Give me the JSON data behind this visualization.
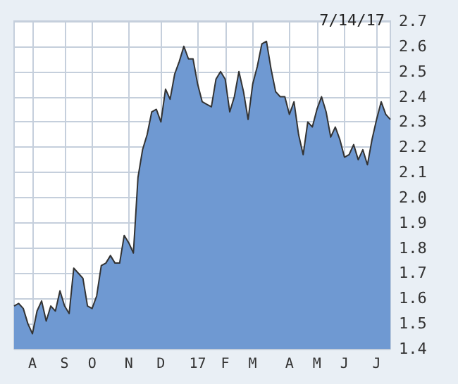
{
  "chart_data": {
    "type": "area",
    "color": "#6f99d2",
    "annotations": [
      "7/14/17"
    ],
    "categories": [
      null,
      null,
      null,
      null,
      "A",
      null,
      null,
      null,
      null,
      null,
      null,
      "S",
      null,
      null,
      null,
      null,
      null,
      "O",
      null,
      null,
      null,
      null,
      null,
      null,
      null,
      "N",
      null,
      null,
      null,
      null,
      null,
      null,
      "D",
      null,
      null,
      null,
      null,
      null,
      null,
      null,
      "17",
      null,
      null,
      null,
      null,
      null,
      "F",
      null,
      null,
      null,
      null,
      null,
      "M",
      null,
      null,
      null,
      null,
      null,
      null,
      null,
      "A",
      null,
      null,
      null,
      null,
      null,
      "M",
      null,
      null,
      null,
      null,
      null,
      "J",
      null,
      null,
      null,
      null,
      null,
      null,
      "J",
      null,
      null,
      null
    ],
    "values": [
      1.57,
      1.58,
      1.56,
      1.5,
      1.46,
      1.55,
      1.59,
      1.51,
      1.57,
      1.55,
      1.63,
      1.57,
      1.54,
      1.72,
      1.7,
      1.68,
      1.57,
      1.56,
      1.61,
      1.73,
      1.74,
      1.77,
      1.74,
      1.74,
      1.85,
      1.82,
      1.78,
      2.08,
      2.19,
      2.25,
      2.34,
      2.35,
      2.3,
      2.43,
      2.39,
      2.49,
      2.54,
      2.6,
      2.55,
      2.55,
      2.45,
      2.38,
      2.37,
      2.36,
      2.47,
      2.5,
      2.47,
      2.34,
      2.4,
      2.5,
      2.42,
      2.31,
      2.45,
      2.52,
      2.61,
      2.62,
      2.51,
      2.42,
      2.4,
      2.4,
      2.33,
      2.38,
      2.25,
      2.17,
      2.3,
      2.28,
      2.35,
      2.4,
      2.34,
      2.24,
      2.28,
      2.23,
      2.16,
      2.17,
      2.21,
      2.15,
      2.19,
      2.13,
      2.23,
      2.31,
      2.38,
      2.33,
      2.31
    ],
    "ylim": [
      1.4,
      2.7
    ],
    "yticks": [
      1.4,
      1.5,
      1.6,
      1.7,
      1.8,
      1.9,
      {
        "value": 2,
        "label": "2.0"
      },
      2.1,
      2.2,
      2.3,
      2.4,
      2.5,
      2.6,
      2.7
    ],
    "grid": true,
    "marker": "none",
    "line_style": "solid"
  }
}
